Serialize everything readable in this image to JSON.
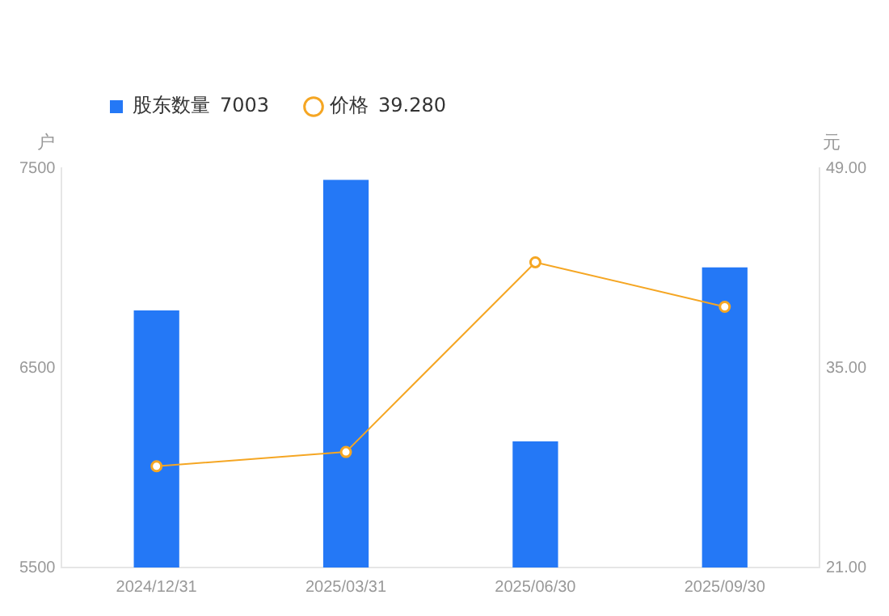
{
  "chart_data": {
    "type": "bar",
    "ylabel": "户",
    "y2label": "元",
    "categories": [
      "2024/12/31",
      "2025/03/31",
      "2025/06/30",
      "2025/09/30"
    ],
    "series": [
      {
        "name": "股东数量",
        "color": "#2478f6",
        "values": [
          6787,
          7441,
          6132,
          7003
        ]
      },
      {
        "name": "价格",
        "type": "line",
        "axis": "y2",
        "color": "#f5a623",
        "values": [
          28.1,
          29.1,
          42.4,
          39.28
        ]
      }
    ],
    "annotations": [
      "7003",
      "39.280"
    ],
    "ylim": [
      5500,
      7500
    ],
    "yticks": [
      5500,
      6500,
      7500
    ],
    "y2lim": [
      21,
      49
    ],
    "y2ticks": [
      {
        "value": 21,
        "label": "21.00"
      },
      {
        "value": 35,
        "label": "35.00"
      },
      {
        "value": 49,
        "label": "49.00"
      }
    ],
    "grid": false,
    "legend": "top left",
    "marker": "circle",
    "line_style": "solid"
  }
}
